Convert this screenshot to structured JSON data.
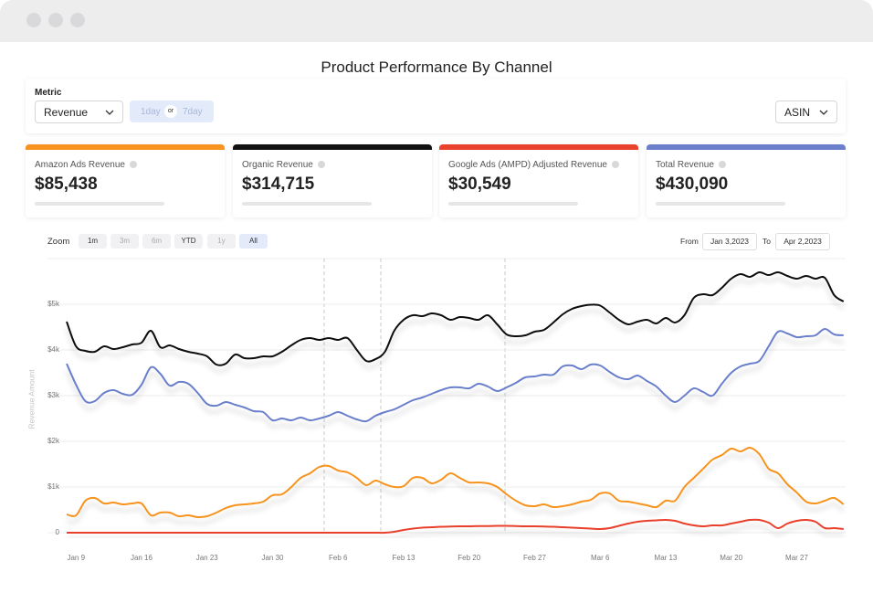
{
  "header": {
    "title": "Product Performance By Channel"
  },
  "controls": {
    "metric_label": "Metric",
    "metric_value": "Revenue",
    "toggle_left": "1day",
    "toggle_mid": "or",
    "toggle_right": "7day",
    "asin": "ASIN"
  },
  "cards": [
    {
      "label": "Amazon Ads Revenue",
      "value": "$85,438",
      "color": "#f7931e"
    },
    {
      "label": "Organic Revenue",
      "value": "$314,715",
      "color": "#111111"
    },
    {
      "label": "Google Ads (AMPD) Adjusted Revenue",
      "value": "$30,549",
      "color": "#e8412c"
    },
    {
      "label": "Total Revenue",
      "value": "$430,090",
      "color": "#6b7fcb"
    }
  ],
  "zoom": {
    "label": "Zoom",
    "options": [
      "1m",
      "3m",
      "6m",
      "YTD",
      "1y",
      "All"
    ]
  },
  "range": {
    "from_label": "From",
    "from": "Jan 3,2023",
    "to_label": "To",
    "to": "Apr 2,2023"
  },
  "chart_data": {
    "type": "line",
    "y_label": "Revenue Amount",
    "grid": true,
    "ylim": [
      0,
      6000
    ],
    "yticks": [
      {
        "value": 0,
        "label": "0"
      },
      {
        "value": 1000,
        "label": "$1k"
      },
      {
        "value": 2000,
        "label": "$2k"
      },
      {
        "value": 3000,
        "label": "$3k"
      },
      {
        "value": 4000,
        "label": "$4k"
      },
      {
        "value": 5000,
        "label": "$5k"
      }
    ],
    "categories": [
      null,
      "Jan 9",
      null,
      null,
      null,
      null,
      null,
      null,
      "Jan 16",
      null,
      null,
      null,
      null,
      null,
      null,
      "Jan 23",
      null,
      null,
      null,
      null,
      null,
      null,
      "Jan 30",
      null,
      null,
      null,
      null,
      null,
      null,
      "Feb 6",
      null,
      null,
      null,
      null,
      null,
      null,
      "Feb 13",
      null,
      null,
      null,
      null,
      null,
      null,
      "Feb 20",
      null,
      null,
      null,
      null,
      null,
      null,
      "Feb 27",
      null,
      null,
      null,
      null,
      null,
      null,
      "Mar 6",
      null,
      null,
      null,
      null,
      null,
      null,
      "Mar 13",
      null,
      null,
      null,
      null,
      null,
      null,
      "Mar 20",
      null,
      null,
      null,
      null,
      null,
      null,
      "Mar 27",
      null,
      null,
      null,
      null,
      null
    ],
    "series": [
      {
        "color": "#111111",
        "values": [
          4620,
          4080,
          3980,
          3960,
          4080,
          4020,
          4060,
          4120,
          4160,
          4420,
          4060,
          4100,
          4020,
          3960,
          3920,
          3860,
          3680,
          3700,
          3900,
          3820,
          3820,
          3860,
          3860,
          3960,
          4100,
          4220,
          4260,
          4220,
          4260,
          4220,
          4260,
          4000,
          3760,
          3800,
          3960,
          4420,
          4660,
          4760,
          4740,
          4800,
          4760,
          4660,
          4720,
          4700,
          4660,
          4760,
          4560,
          4340,
          4300,
          4320,
          4400,
          4440,
          4600,
          4780,
          4900,
          4960,
          4990,
          4970,
          4820,
          4660,
          4560,
          4620,
          4660,
          4580,
          4700,
          4600,
          4760,
          5140,
          5220,
          5200,
          5360,
          5560,
          5660,
          5600,
          5700,
          5640,
          5700,
          5620,
          5560,
          5620,
          5560,
          5580,
          5200,
          5060
        ]
      },
      {
        "color": "#6b7fcb",
        "values": [
          3700,
          3240,
          2880,
          2880,
          3060,
          3120,
          3040,
          3020,
          3240,
          3620,
          3480,
          3220,
          3300,
          3260,
          3060,
          2820,
          2780,
          2860,
          2800,
          2740,
          2660,
          2640,
          2460,
          2500,
          2460,
          2520,
          2460,
          2500,
          2560,
          2640,
          2560,
          2480,
          2440,
          2560,
          2640,
          2700,
          2800,
          2900,
          2960,
          3040,
          3120,
          3180,
          3180,
          3160,
          3260,
          3200,
          3100,
          3180,
          3280,
          3400,
          3420,
          3460,
          3460,
          3640,
          3660,
          3580,
          3680,
          3660,
          3520,
          3400,
          3360,
          3440,
          3320,
          3200,
          3000,
          2860,
          3000,
          3160,
          3080,
          3000,
          3260,
          3500,
          3640,
          3700,
          3760,
          4080,
          4400,
          4360,
          4280,
          4300,
          4320,
          4460,
          4340,
          4320
        ]
      },
      {
        "color": "#f7931e",
        "values": [
          400,
          380,
          700,
          760,
          640,
          660,
          620,
          640,
          640,
          380,
          440,
          440,
          360,
          380,
          340,
          360,
          440,
          540,
          600,
          620,
          640,
          680,
          820,
          840,
          1000,
          1200,
          1300,
          1440,
          1460,
          1360,
          1320,
          1200,
          1040,
          1140,
          1060,
          1000,
          1020,
          1200,
          1200,
          1080,
          1160,
          1300,
          1200,
          1100,
          1100,
          1080,
          1000,
          840,
          700,
          600,
          580,
          620,
          560,
          580,
          620,
          680,
          720,
          860,
          860,
          700,
          680,
          640,
          600,
          560,
          700,
          700,
          1000,
          1200,
          1400,
          1600,
          1700,
          1840,
          1780,
          1860,
          1720,
          1400,
          1300,
          1060,
          880,
          680,
          640,
          700,
          760,
          620
        ]
      },
      {
        "color": "#e8412c",
        "values": [
          0,
          0,
          0,
          0,
          0,
          0,
          0,
          0,
          0,
          0,
          0,
          0,
          0,
          0,
          0,
          0,
          0,
          0,
          0,
          0,
          0,
          0,
          0,
          0,
          0,
          0,
          0,
          0,
          0,
          0,
          0,
          0,
          0,
          0,
          0,
          20,
          60,
          90,
          110,
          120,
          130,
          135,
          140,
          140,
          145,
          145,
          150,
          150,
          145,
          140,
          140,
          135,
          130,
          120,
          110,
          100,
          90,
          80,
          100,
          150,
          200,
          240,
          260,
          270,
          280,
          260,
          200,
          160,
          140,
          160,
          160,
          200,
          240,
          280,
          280,
          220,
          100,
          200,
          260,
          280,
          240,
          100,
          100,
          80
        ]
      }
    ]
  }
}
